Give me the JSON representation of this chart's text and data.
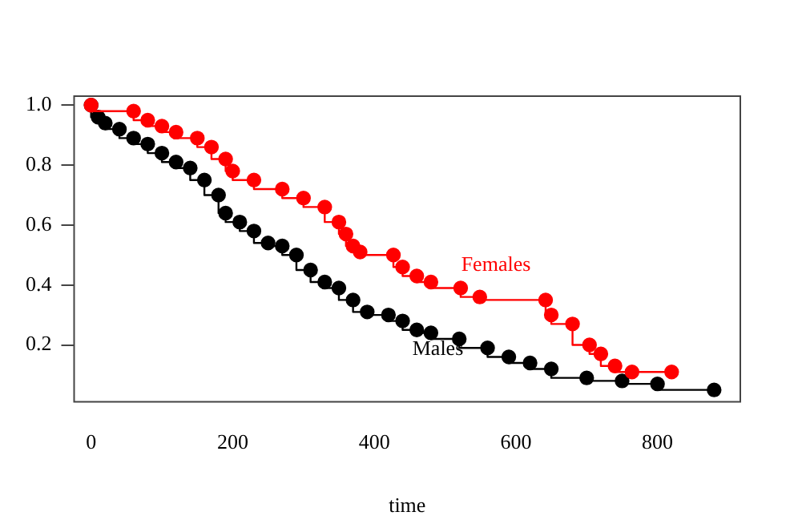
{
  "chart_data": {
    "type": "step",
    "xlabel": "time",
    "xlim": [
      -24,
      917
    ],
    "ylim": [
      0.01,
      1.03
    ],
    "xticks": [
      0,
      200,
      400,
      600,
      800
    ],
    "yticks": [
      {
        "value": 0.2,
        "label": "0.2"
      },
      {
        "value": 0.4,
        "label": "0.4"
      },
      {
        "value": 0.6,
        "label": "0.6"
      },
      {
        "value": 0.8,
        "label": "0.8"
      },
      {
        "value": 1,
        "label": "1.0"
      }
    ],
    "grid": false,
    "legend": false,
    "marker": "circle",
    "line_style": "solid",
    "series": [
      {
        "name": "Males",
        "color": "#000000",
        "x": [
          0,
          10,
          20,
          40,
          60,
          80,
          100,
          120,
          140,
          160,
          180,
          190,
          210,
          230,
          250,
          270,
          290,
          310,
          330,
          350,
          370,
          390,
          420,
          440,
          460,
          480,
          520,
          560,
          590,
          620,
          650,
          700,
          750,
          800,
          880
        ],
        "values": [
          1.0,
          0.96,
          0.94,
          0.92,
          0.89,
          0.87,
          0.84,
          0.81,
          0.79,
          0.75,
          0.7,
          0.64,
          0.61,
          0.58,
          0.54,
          0.53,
          0.5,
          0.45,
          0.41,
          0.39,
          0.35,
          0.31,
          0.3,
          0.28,
          0.25,
          0.24,
          0.22,
          0.19,
          0.16,
          0.14,
          0.12,
          0.09,
          0.08,
          0.07,
          0.05
        ]
      },
      {
        "name": "Females",
        "color": "#ff0000",
        "x": [
          0,
          60,
          80,
          100,
          120,
          150,
          170,
          190,
          200,
          230,
          270,
          300,
          330,
          350,
          360,
          370,
          380,
          427,
          440,
          460,
          480,
          522,
          549,
          642,
          650,
          680,
          704,
          720,
          740,
          764,
          820
        ],
        "values": [
          1.0,
          0.98,
          0.95,
          0.93,
          0.91,
          0.89,
          0.86,
          0.82,
          0.78,
          0.75,
          0.72,
          0.69,
          0.66,
          0.61,
          0.57,
          0.53,
          0.51,
          0.5,
          0.46,
          0.43,
          0.41,
          0.39,
          0.36,
          0.35,
          0.3,
          0.27,
          0.2,
          0.17,
          0.13,
          0.11,
          0.11
        ]
      }
    ]
  }
}
